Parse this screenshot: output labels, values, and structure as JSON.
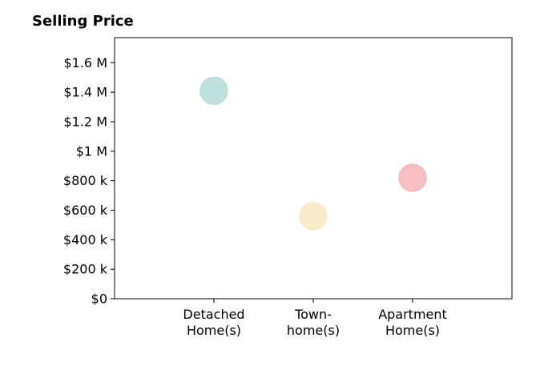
{
  "chart_data": {
    "type": "scatter",
    "title": "Selling Price",
    "categories": [
      "Detached\nHome(s)",
      "Town-\nhome(s)",
      "Apartment\nHome(s)"
    ],
    "values": [
      1410000,
      560000,
      820000
    ],
    "point_colors": [
      "#a9d8d3",
      "#f7e4b8",
      "#f5a9ae"
    ],
    "y_ticks": [
      0,
      200000,
      400000,
      600000,
      800000,
      1000000,
      1200000,
      1400000,
      1600000
    ],
    "y_tick_labels": [
      "$0",
      "$200 k",
      "$400 k",
      "$600 k",
      "$800 k",
      "$1 M",
      "$1.2 M",
      "$1.4 M",
      "$1.6 M"
    ],
    "ylim": [
      0,
      1770000
    ],
    "xlim": [
      -1,
      3
    ],
    "grid": false,
    "legend": "none"
  }
}
